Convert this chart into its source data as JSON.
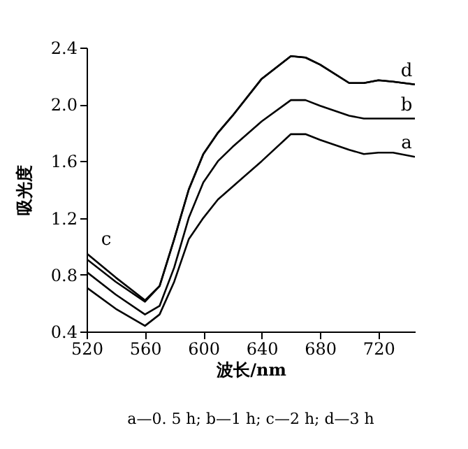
{
  "chart_data": {
    "type": "line",
    "xlabel": "波长/nm",
    "ylabel": "吸光度",
    "x": [
      520,
      540,
      560,
      570,
      580,
      590,
      600,
      610,
      620,
      640,
      660,
      670,
      680,
      700,
      710,
      720,
      730,
      745
    ],
    "series": [
      {
        "name": "a",
        "color": "#000000",
        "values": [
          0.71,
          0.56,
          0.44,
          0.52,
          0.75,
          1.05,
          1.2,
          1.33,
          1.42,
          1.6,
          1.79,
          1.79,
          1.75,
          1.68,
          1.65,
          1.66,
          1.66,
          1.63
        ]
      },
      {
        "name": "b",
        "color": "#000000",
        "values": [
          0.82,
          0.66,
          0.52,
          0.58,
          0.85,
          1.2,
          1.45,
          1.6,
          1.7,
          1.88,
          2.03,
          2.03,
          1.99,
          1.92,
          1.9,
          1.9,
          1.9,
          1.9
        ]
      },
      {
        "name": "d",
        "color": "#000000",
        "values": [
          0.95,
          0.78,
          0.62,
          0.72,
          1.05,
          1.4,
          1.65,
          1.8,
          1.92,
          2.18,
          2.34,
          2.33,
          2.28,
          2.15,
          2.15,
          2.17,
          2.16,
          2.14
        ]
      },
      {
        "name": "c",
        "color": "#000000",
        "values": [
          0.91,
          0.75,
          0.61,
          0.72,
          1.05,
          1.4,
          1.65,
          1.8,
          1.92,
          2.18,
          2.34,
          2.33,
          2.28,
          2.15,
          2.15,
          2.17,
          2.16,
          2.14
        ]
      }
    ],
    "xlim": [
      520,
      745
    ],
    "ylim": [
      0.4,
      2.4
    ],
    "xticks": [
      520,
      560,
      600,
      640,
      680,
      720
    ],
    "yticks": [
      0.4,
      0.8,
      1.2,
      1.6,
      {
        "value": 2,
        "label": "2.0"
      },
      2.4
    ],
    "grid": false,
    "legend": false,
    "marker": "none",
    "line_style": "solid",
    "annotations": [
      "a—0. 5 h; b—1 h; c—2 h; d—3 h"
    ]
  }
}
